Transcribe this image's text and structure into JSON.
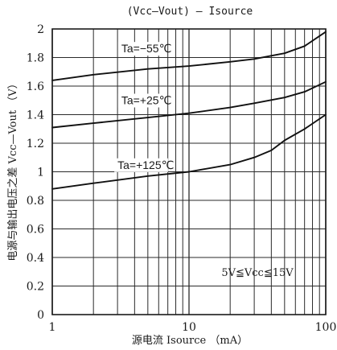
{
  "chart_data": {
    "type": "line",
    "title": "(Vcc—Vout) — Isource",
    "xlabel": "源电流 Isource （mA）",
    "ylabel": "电源与输出电压之差 Vcc—Vout （V）",
    "xscale": "log",
    "xlim": [
      1,
      100
    ],
    "ylim": [
      0,
      2
    ],
    "grid": true,
    "x_ticks": [
      1,
      2,
      3,
      4,
      5,
      6,
      7,
      8,
      9,
      10,
      20,
      30,
      40,
      50,
      60,
      70,
      80,
      90,
      100
    ],
    "x_tick_labels": [
      "1",
      "10",
      "100"
    ],
    "x_tick_label_values": [
      1,
      10,
      100
    ],
    "y_ticks": [
      0,
      0.2,
      0.4,
      0.6,
      0.8,
      1,
      1.2,
      1.4,
      1.6,
      1.8,
      2
    ],
    "y_tick_labels": [
      "0",
      "0.2",
      "0.4",
      "0.6",
      "0.8",
      "1",
      "1.2",
      "1.4",
      "1.6",
      "1.8",
      "2"
    ],
    "annotation": "5V≦Vcc≦15V",
    "series": [
      {
        "name": "Ta=−55℃",
        "x": [
          1,
          2,
          5,
          10,
          20,
          30,
          50,
          70,
          100
        ],
        "y": [
          1.64,
          1.68,
          1.72,
          1.74,
          1.77,
          1.79,
          1.83,
          1.88,
          1.98
        ]
      },
      {
        "name": "Ta=+25℃",
        "x": [
          1,
          2,
          5,
          10,
          20,
          30,
          50,
          70,
          100
        ],
        "y": [
          1.31,
          1.34,
          1.38,
          1.41,
          1.45,
          1.48,
          1.52,
          1.56,
          1.63
        ]
      },
      {
        "name": "Ta=+125℃",
        "x": [
          1,
          2,
          5,
          10,
          20,
          30,
          40,
          50,
          70,
          100
        ],
        "y": [
          0.88,
          0.92,
          0.97,
          1.0,
          1.05,
          1.1,
          1.15,
          1.22,
          1.3,
          1.4
        ]
      }
    ]
  }
}
